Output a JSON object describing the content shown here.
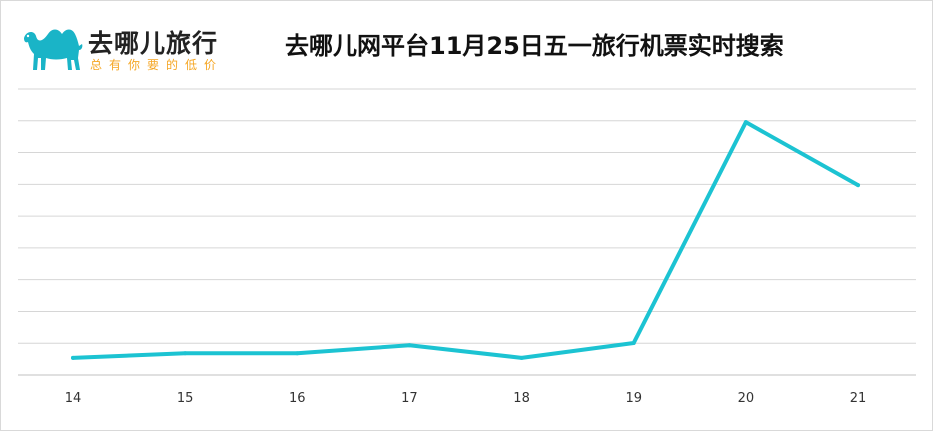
{
  "header": {
    "brand": "去哪儿旅行",
    "slogan": "总有你要的低价",
    "logo_icon": "camel-icon",
    "brand_color": "#1ab4c7",
    "slogan_color": "#f5a623"
  },
  "chart_data": {
    "type": "line",
    "title": "去哪儿网平台11月25日五一旅行机票实时搜索",
    "xlabel": "",
    "ylabel": "",
    "categories": [
      "14",
      "15",
      "16",
      "17",
      "18",
      "19",
      "20",
      "21"
    ],
    "series": [
      {
        "values": [
          0.5,
          0.9,
          0.9,
          1.6,
          0.5,
          1.8,
          21.1,
          15.6
        ],
        "color": "#1cc3d2"
      }
    ],
    "ylim": [
      -1,
      24
    ],
    "grid": true,
    "gridline_count": 10,
    "y_ticks_labeled": false
  }
}
